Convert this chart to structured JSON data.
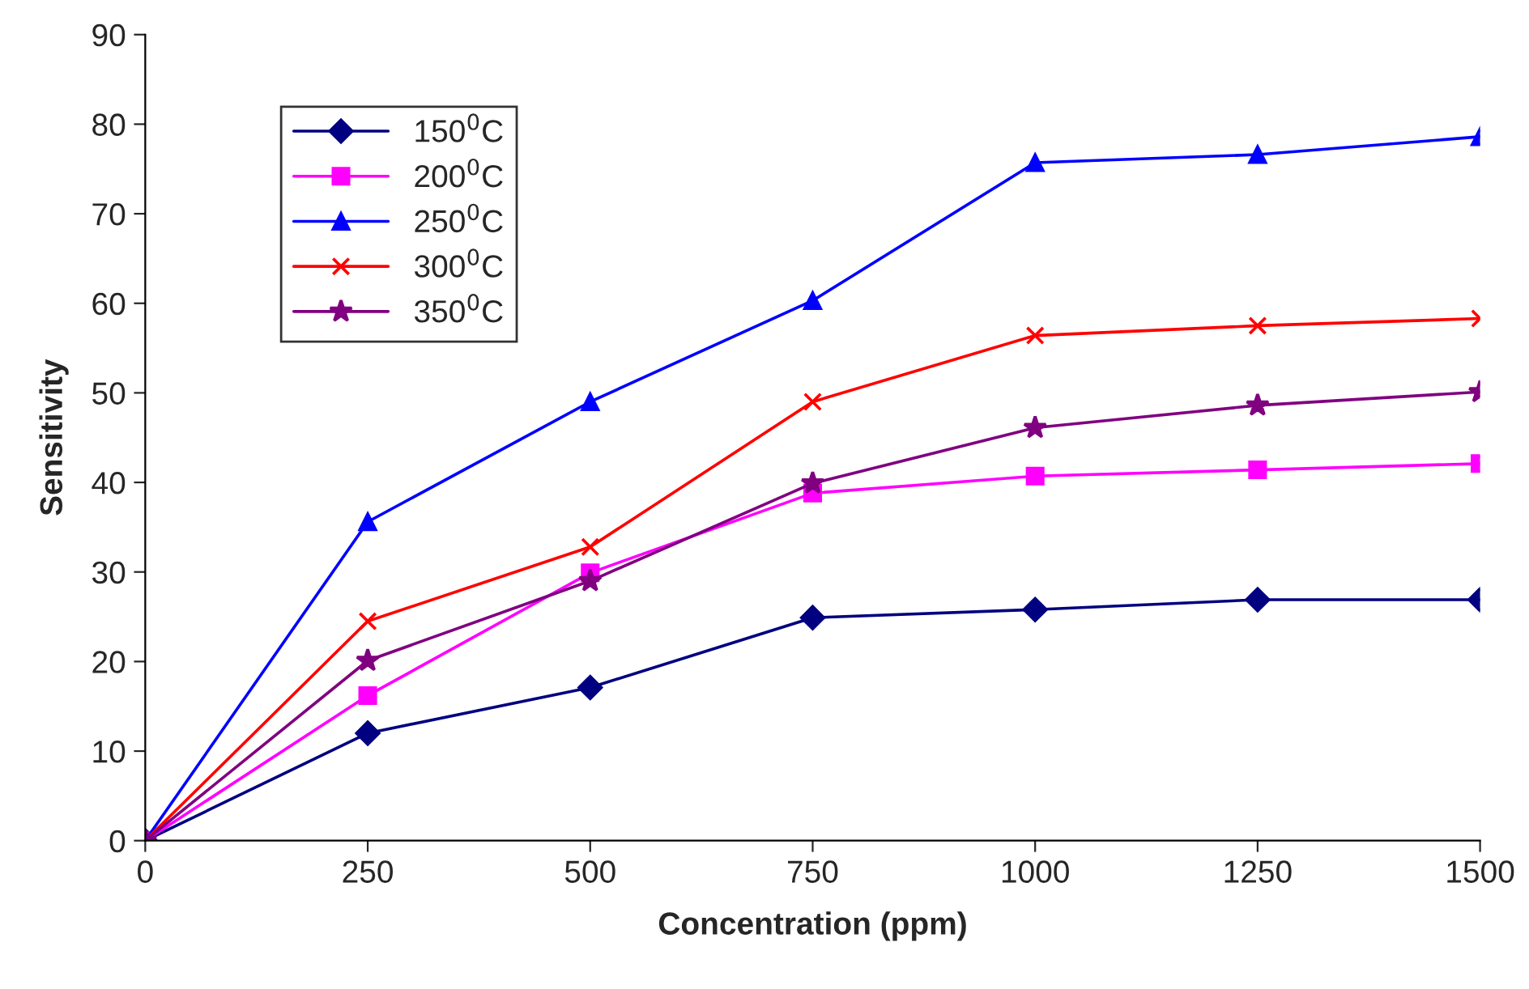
{
  "chart_data": {
    "type": "line",
    "xlabel": "Concentration (ppm)",
    "ylabel": "Sensitivity",
    "x": [
      0,
      250,
      500,
      750,
      1000,
      1250,
      1500
    ],
    "xlim": [
      0,
      1500
    ],
    "xticks": [
      0,
      250,
      500,
      750,
      1000,
      1250,
      1500
    ],
    "ylim": [
      0,
      90
    ],
    "yticks": [
      0,
      10,
      20,
      30,
      40,
      50,
      60,
      70,
      80,
      90
    ],
    "grid": false,
    "legend": "top left",
    "line_style": "solid",
    "series": [
      {
        "name": "150$^{0}$C",
        "color": "#000080",
        "marker": "diamond",
        "values": [
          0,
          12.0,
          17.1,
          24.9,
          25.8,
          26.9,
          26.9
        ]
      },
      {
        "name": "200$^{0}$C",
        "color": "#ff00ff",
        "marker": "square",
        "values": [
          0,
          16.2,
          29.9,
          38.8,
          40.7,
          41.4,
          42.1
        ]
      },
      {
        "name": "250$^{0}$C",
        "color": "#0000ff",
        "marker": "triangle",
        "values": [
          0,
          35.6,
          49.0,
          60.3,
          75.7,
          76.6,
          78.6
        ]
      },
      {
        "name": "300$^{0}$C",
        "color": "#ff0000",
        "marker": "cross",
        "values": [
          0,
          24.5,
          32.8,
          49.0,
          56.4,
          57.5,
          58.3
        ]
      },
      {
        "name": "350$^{0}$C",
        "color": "#800080",
        "marker": "star",
        "values": [
          0,
          20.1,
          29.0,
          39.9,
          46.1,
          48.6,
          50.1
        ]
      }
    ]
  }
}
